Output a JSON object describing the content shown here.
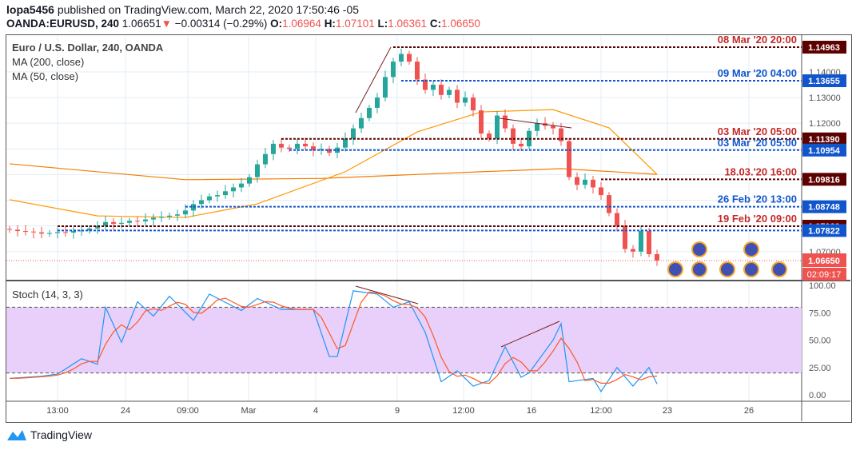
{
  "header": {
    "publisher": "lopa5456",
    "published_text": "published on TradingView.com, March 22, 2020 17:50:46 -05",
    "symbol": "OANDA:EURUSD, 240",
    "last": "1.06651",
    "change": "−0.00314 (−0.29%)",
    "o_label": "O:",
    "o": "1.06964",
    "h_label": "H:",
    "h": "1.07101",
    "l_label": "L:",
    "l": "1.06361",
    "c_label": "C:",
    "c": "1.06650"
  },
  "legend": {
    "title": "Euro / U.S. Dollar, 240, OANDA",
    "ma200": "MA (200, close)",
    "ma50": "MA (50, close)",
    "stoch": "Stoch (14, 3, 3)"
  },
  "brand": "TradingView",
  "chart_data": {
    "type": "candlestick",
    "ylim": [
      1.0615,
      1.1625
    ],
    "price_ticks": [
      "1.14000",
      "1.13000",
      "1.12000",
      "1.07000"
    ],
    "closes": [
      1.0785,
      1.078,
      1.0778,
      1.0775,
      1.077,
      1.0772,
      1.0776,
      1.0774,
      1.078,
      1.0782,
      1.079,
      1.08,
      1.0815,
      1.0808,
      1.0812,
      1.082,
      1.0818,
      1.0825,
      1.0832,
      1.0836,
      1.084,
      1.0845,
      1.086,
      1.0885,
      1.09,
      1.0915,
      1.092,
      1.0935,
      1.095,
      1.0965,
      1.099,
      1.104,
      1.108,
      1.112,
      1.1105,
      1.11,
      1.112,
      1.111,
      1.1095,
      1.11,
      1.1085,
      1.1105,
      1.114,
      1.118,
      1.122,
      1.126,
      1.13,
      1.138,
      1.144,
      1.147,
      1.144,
      1.137,
      1.133,
      1.135,
      1.131,
      1.133,
      1.128,
      1.13,
      1.125,
      1.116,
      1.114,
      1.123,
      1.118,
      1.112,
      1.111,
      1.117,
      1.12,
      1.119,
      1.118,
      1.113,
      1.099,
      1.096,
      1.098,
      1.095,
      1.092,
      1.085,
      1.08,
      1.071,
      1.07,
      1.078,
      1.069,
      1.0665
    ],
    "ma200": [
      [
        0,
        1.1042
      ],
      [
        22,
        1.098
      ],
      [
        39,
        1.0985
      ],
      [
        59,
        1.1011
      ],
      [
        69,
        1.1023
      ],
      [
        81,
        1.1001
      ]
    ],
    "ma50": [
      [
        0,
        1.0902
      ],
      [
        11,
        1.0839
      ],
      [
        22,
        1.0833
      ],
      [
        31,
        1.0886
      ],
      [
        42,
        1.1011
      ],
      [
        51,
        1.1166
      ],
      [
        59,
        1.1244
      ],
      [
        68,
        1.1253
      ],
      [
        75,
        1.1182
      ],
      [
        81,
        1.1001
      ]
    ],
    "levels": [
      {
        "price": 1.14963,
        "label": "08 Mar '20 20:00",
        "value": "1.14963",
        "color": "#5d0000",
        "text": "#c62828",
        "from": 48
      },
      {
        "price": 1.13655,
        "label": "09 Mar '20 04:00",
        "value": "1.13655",
        "color": "#1155cc",
        "text": "#1155cc",
        "from": 49
      },
      {
        "price": 1.1139,
        "label": "03 Mar '20 05:00",
        "value": "1.11390",
        "color": "#5d0000",
        "text": "#c62828",
        "from": 34
      },
      {
        "price": 1.10954,
        "label": "03 Mar '20 05:00",
        "value": "1.10954",
        "color": "#1155cc",
        "text": "#1155cc",
        "from": 35
      },
      {
        "price": 1.09816,
        "label": "18.03.'20 16:00",
        "value": "1.09816",
        "color": "#5d0000",
        "text": "#c62828",
        "from": 74
      },
      {
        "price": 1.08748,
        "label": "26 Feb '20 13:00",
        "value": "1.08748",
        "color": "#1155cc",
        "text": "#1155cc",
        "from": 22
      },
      {
        "price": 1.07989,
        "label": "19 Feb '20 09:00",
        "value": "1.07989",
        "color": "#5d0000",
        "text": "#c62828",
        "from": 6
      },
      {
        "price": 1.07822,
        "label": "",
        "value": "1.07822",
        "color": "#1155cc",
        "text": "#1155cc",
        "from": 6
      }
    ],
    "current": {
      "value": "1.06650",
      "countdown": "02:09:17"
    },
    "x_ticks": [
      [
        "13:00",
        6
      ],
      [
        "24",
        14.5
      ],
      [
        "09:00",
        22.3
      ],
      [
        "Mar",
        29.9
      ],
      [
        "4",
        38.3
      ],
      [
        "9",
        48.5
      ],
      [
        "12:00",
        56.8
      ],
      [
        "16",
        65.3
      ],
      [
        "12:00",
        74
      ],
      [
        "23",
        82.3
      ],
      [
        "26",
        92.5
      ]
    ],
    "stoch": {
      "ticks": [
        "100.00",
        "75.00",
        "50.00",
        "25.00",
        "0.00"
      ],
      "overbought": 80,
      "oversold": 20,
      "k": [
        [
          0,
          15
        ],
        [
          4,
          17
        ],
        [
          6,
          19
        ],
        [
          9,
          33
        ],
        [
          11,
          28
        ],
        [
          12,
          80
        ],
        [
          14,
          48
        ],
        [
          16,
          85
        ],
        [
          18,
          72
        ],
        [
          20,
          90
        ],
        [
          23,
          68
        ],
        [
          25,
          92
        ],
        [
          29,
          77
        ],
        [
          31,
          88
        ],
        [
          34,
          78
        ],
        [
          38,
          78
        ],
        [
          40,
          35
        ],
        [
          41,
          35
        ],
        [
          43,
          95
        ],
        [
          46,
          92
        ],
        [
          48,
          80
        ],
        [
          50,
          85
        ],
        [
          52,
          57
        ],
        [
          54,
          12
        ],
        [
          56,
          22
        ],
        [
          58,
          8
        ],
        [
          60,
          13
        ],
        [
          62,
          44
        ],
        [
          64,
          16
        ],
        [
          65,
          20
        ],
        [
          68,
          50
        ],
        [
          69,
          65
        ],
        [
          70,
          12
        ],
        [
          73,
          15
        ],
        [
          74,
          3
        ],
        [
          76,
          25
        ],
        [
          78,
          8
        ],
        [
          80,
          25
        ],
        [
          81,
          10
        ]
      ]
    }
  }
}
